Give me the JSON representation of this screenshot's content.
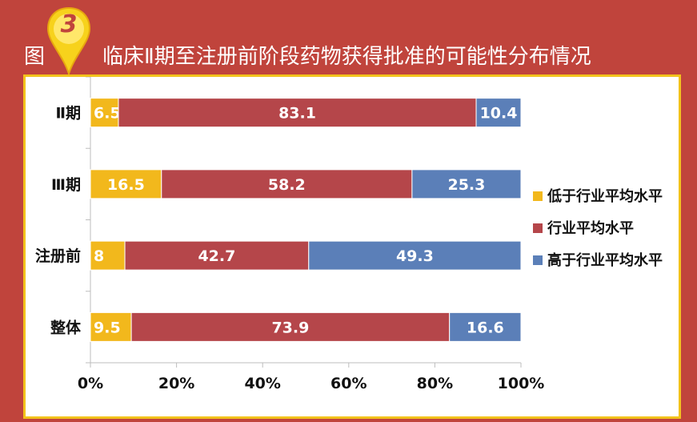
{
  "figure": {
    "label": "图",
    "number": "3",
    "title": "临床Ⅱ期至注册前阶段药物获得批准的可能性分布情况"
  },
  "colors": {
    "background": "#c0443c",
    "panel_border": "#f2c21c",
    "series_low": "#f2b81c",
    "series_avg": "#b5464a",
    "series_high": "#5b7fb8",
    "grid": "#d0d0d0"
  },
  "chart_data": {
    "type": "bar",
    "orientation": "horizontal",
    "stacked": true,
    "categories": [
      "Ⅱ期",
      "Ⅲ期",
      "注册前",
      "整体"
    ],
    "series": [
      {
        "name": "低于行业平均水平",
        "values": [
          6.5,
          16.5,
          8,
          9.5
        ]
      },
      {
        "name": "行业平均水平",
        "values": [
          83.1,
          58.2,
          42.7,
          73.9
        ]
      },
      {
        "name": "高于行业平均水平",
        "values": [
          10.4,
          25.3,
          49.3,
          16.6
        ]
      }
    ],
    "xlim": [
      0,
      100
    ],
    "xticks": [
      "0%",
      "20%",
      "40%",
      "60%",
      "80%",
      "100%"
    ],
    "legend": "right",
    "grid": false
  }
}
